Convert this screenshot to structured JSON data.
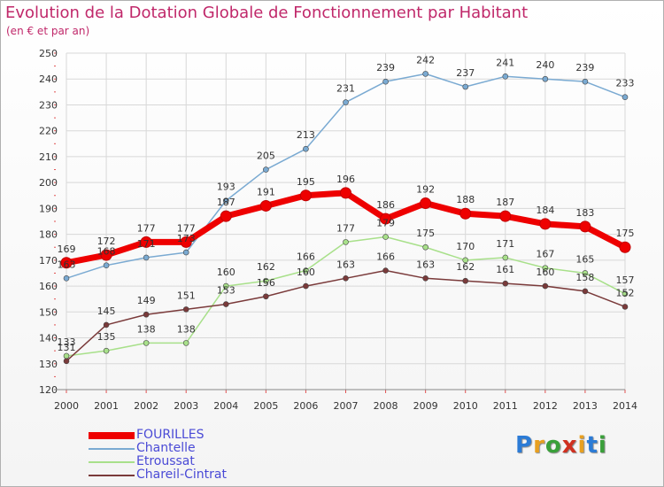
{
  "title": "Evolution de la Dotation Globale de Fonctionnement par Habitant",
  "subtitle": "(en € et par an)",
  "logo": {
    "text": "Proxiti",
    "letters": [
      "P",
      "r",
      "o",
      "x",
      "i",
      "t",
      "i"
    ],
    "colors": [
      "#2b7bd6",
      "#e8a020",
      "#3aa03a",
      "#d03020",
      "#e8a020",
      "#2b7bd6",
      "#3aa03a"
    ]
  },
  "chart_data": {
    "type": "line",
    "title": "Evolution de la Dotation Globale de Fonctionnement par Habitant",
    "subtitle": "(en € et par an)",
    "x": [
      "2000",
      "2001",
      "2002",
      "2003",
      "2004",
      "2005",
      "2006",
      "2007",
      "2008",
      "2009",
      "2010",
      "2011",
      "2012",
      "2013",
      "2014"
    ],
    "ylim": [
      120,
      250
    ],
    "yticks": [
      120,
      130,
      140,
      150,
      160,
      170,
      180,
      190,
      200,
      210,
      220,
      230,
      240,
      250
    ],
    "grid": true,
    "legend_position": "bottom-left",
    "series": [
      {
        "name": "FOURILLES",
        "color": "#ee0000",
        "values": [
          169,
          172,
          177,
          177,
          187,
          191,
          195,
          196,
          186,
          192,
          188,
          187,
          184,
          183,
          175
        ]
      },
      {
        "name": "Chantelle",
        "color": "#7aaad2",
        "values": [
          163,
          168,
          171,
          173,
          193,
          205,
          213,
          231,
          239,
          242,
          237,
          241,
          240,
          239,
          233
        ]
      },
      {
        "name": "Etroussat",
        "color": "#a8e08a",
        "values": [
          133,
          135,
          138,
          138,
          160,
          162,
          166,
          177,
          179,
          175,
          170,
          171,
          167,
          165,
          157
        ]
      },
      {
        "name": "Chareil-Cintrat",
        "color": "#7a3a3a",
        "values": [
          131,
          145,
          149,
          151,
          153,
          156,
          160,
          163,
          166,
          163,
          162,
          161,
          160,
          158,
          152
        ]
      }
    ]
  }
}
